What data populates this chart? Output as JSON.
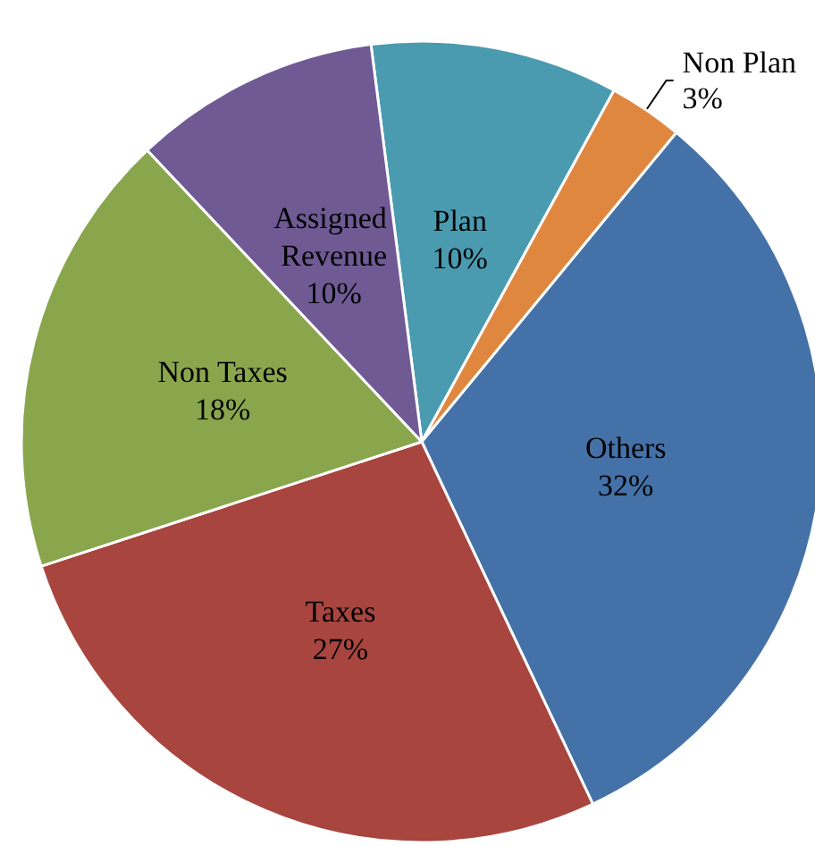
{
  "chart_data": {
    "type": "pie",
    "categories": [
      "Plan",
      "Non Plan",
      "Others",
      "Taxes",
      "Non Taxes",
      "Assigned Revenue"
    ],
    "values": [
      10,
      3,
      32,
      27,
      18,
      10
    ],
    "value_labels": [
      "10%",
      "3%",
      "32%",
      "27%",
      "18%",
      "10%"
    ],
    "colors": [
      "#4a9bb0",
      "#e0873f",
      "#4472a8",
      "#a8453f",
      "#8aa64d",
      "#6f5a94"
    ],
    "legend": false
  }
}
